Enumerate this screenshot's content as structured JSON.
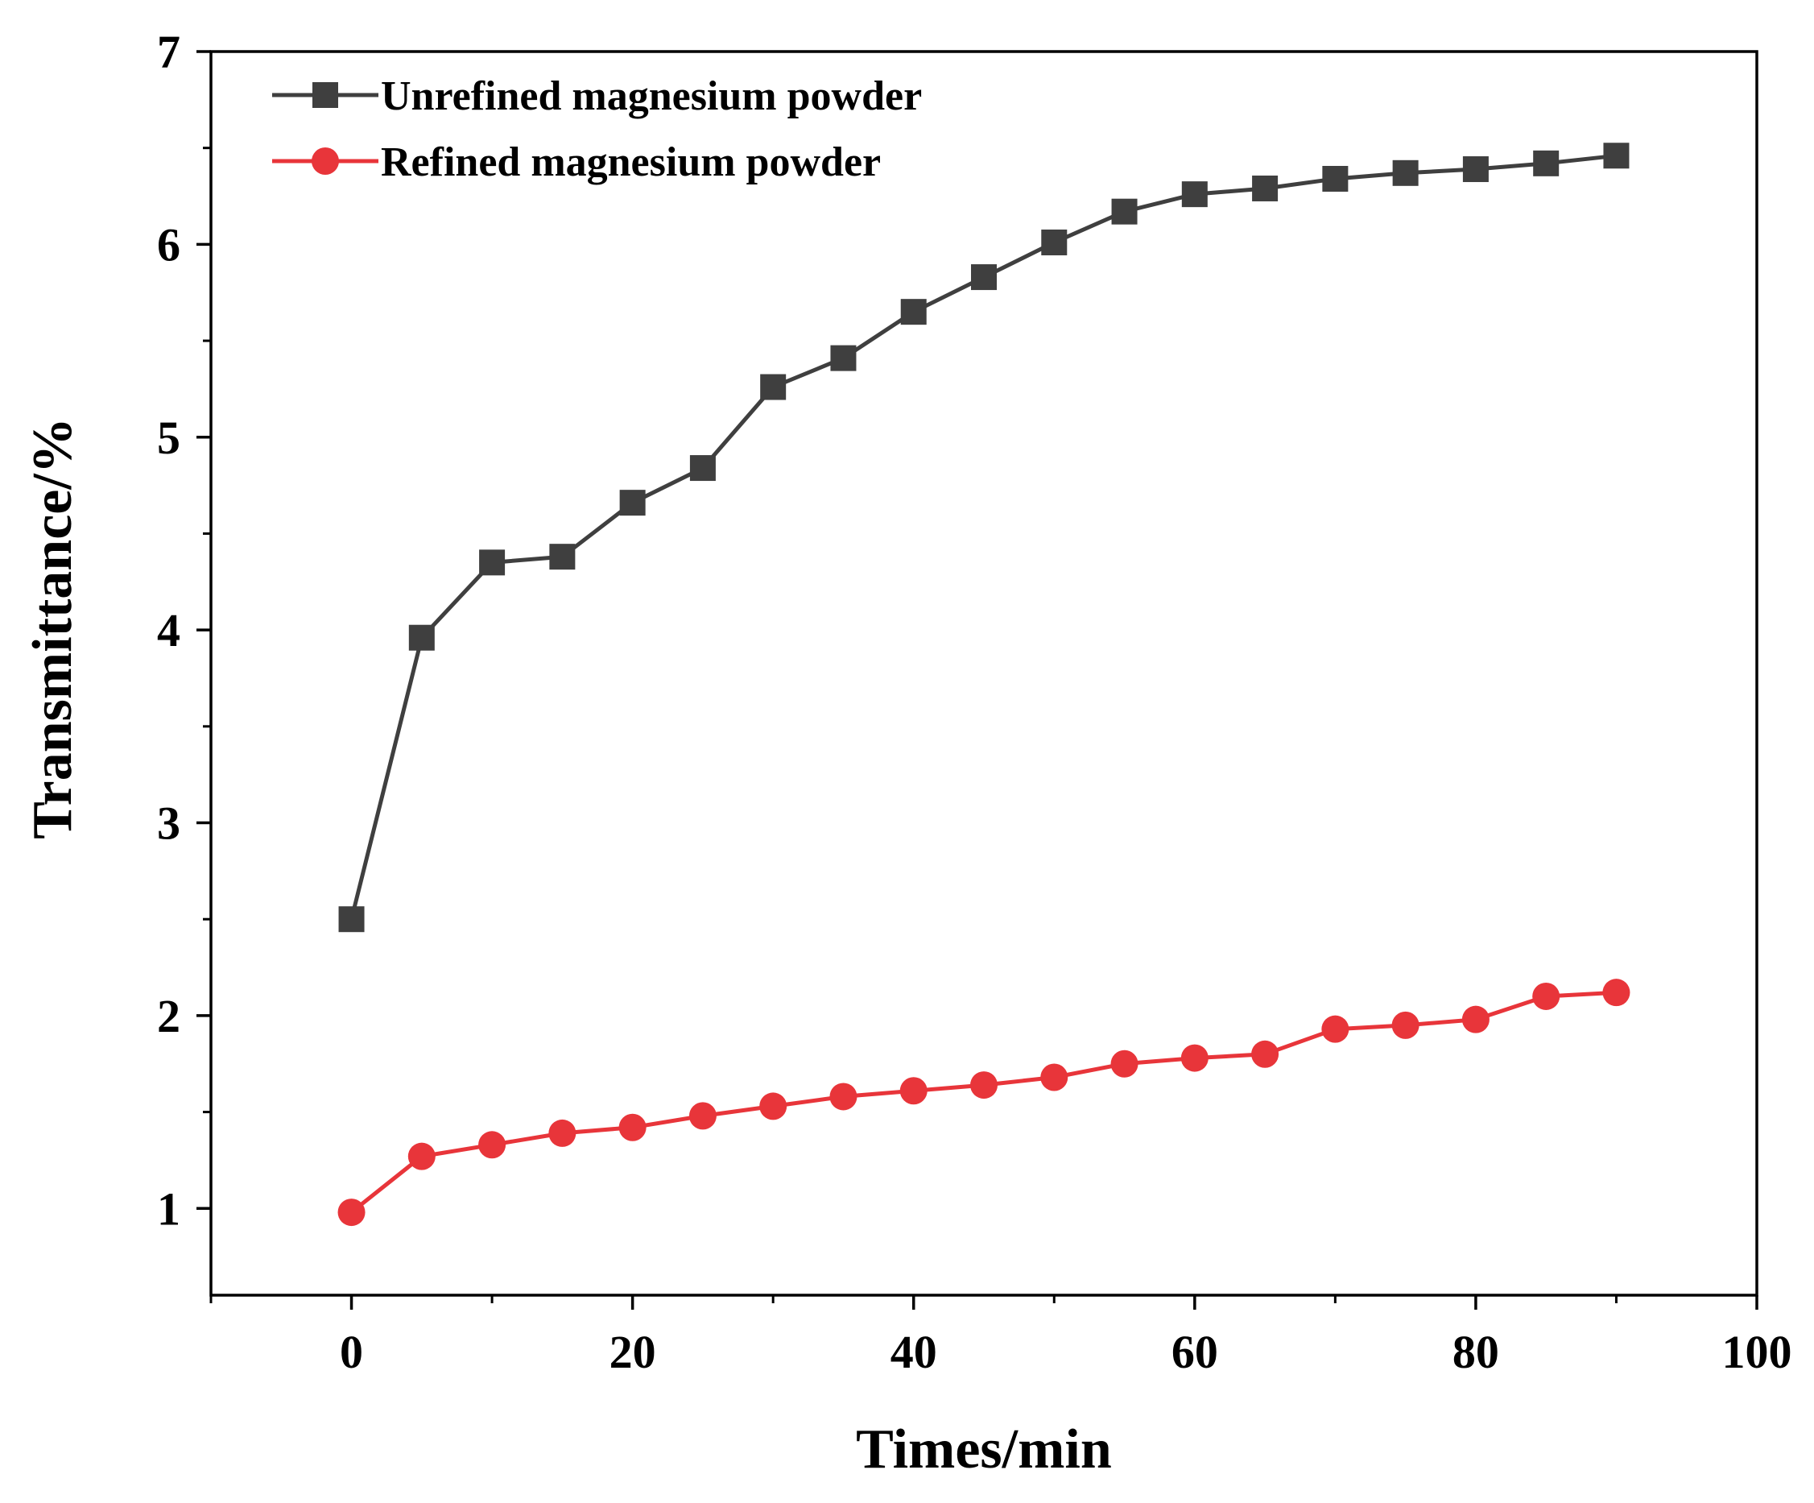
{
  "chart_data": {
    "type": "line",
    "title": "",
    "xlabel": "Times/min",
    "ylabel": "Transmittance/%",
    "xlim": [
      -10,
      100
    ],
    "ylim": [
      0.55,
      7
    ],
    "xticks": [
      0,
      20,
      40,
      60,
      80,
      100
    ],
    "yticks": [
      1,
      2,
      3,
      4,
      5,
      6,
      7
    ],
    "grid": false,
    "legend_position": "top-left",
    "x": [
      0,
      5,
      10,
      15,
      20,
      25,
      30,
      35,
      40,
      45,
      50,
      55,
      60,
      65,
      70,
      75,
      80,
      85,
      90
    ],
    "series": [
      {
        "name": "Unrefined magnesium powder",
        "color": "#3f3f3f",
        "marker": "square",
        "values": [
          2.5,
          3.96,
          4.35,
          4.38,
          4.66,
          4.84,
          5.26,
          5.41,
          5.65,
          5.83,
          6.01,
          6.17,
          6.26,
          6.29,
          6.34,
          6.37,
          6.39,
          6.42,
          6.46
        ]
      },
      {
        "name": "Refined magnesium powder",
        "color": "#e8353a",
        "marker": "circle",
        "values": [
          0.98,
          1.27,
          1.33,
          1.39,
          1.42,
          1.48,
          1.53,
          1.58,
          1.61,
          1.64,
          1.68,
          1.75,
          1.78,
          1.8,
          1.93,
          1.95,
          1.98,
          2.1,
          2.12
        ]
      }
    ]
  }
}
